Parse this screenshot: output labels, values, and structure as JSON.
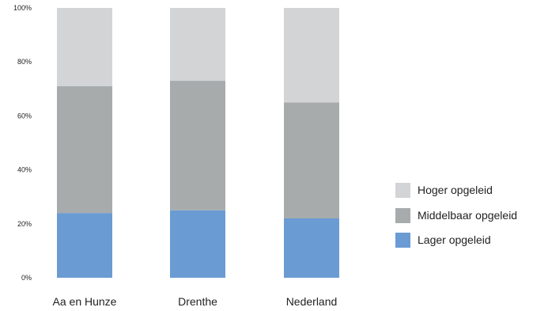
{
  "chart_data": {
    "type": "bar",
    "stacked": true,
    "categories": [
      "Aa en Hunze",
      "Drenthe",
      "Nederland"
    ],
    "series": [
      {
        "name": "Lager opgeleid",
        "values": [
          24,
          25,
          22
        ],
        "color": "#6a9bd3"
      },
      {
        "name": "Middelbaar opgeleid",
        "values": [
          47,
          48,
          43
        ],
        "color": "#a7abac"
      },
      {
        "name": "Hoger opgeleid",
        "values": [
          29,
          27,
          35
        ],
        "color": "#d3d4d5"
      }
    ],
    "legend_order": [
      "Hoger opgeleid",
      "Middelbaar opgeleid",
      "Lager opgeleid"
    ],
    "title": "",
    "xlabel": "",
    "ylabel": "",
    "ylim": [
      0,
      100
    ],
    "yticks": [
      "0%",
      "20%",
      "40%",
      "60%",
      "80%",
      "100%"
    ],
    "ytick_values": [
      0,
      20,
      40,
      60,
      80,
      100
    ],
    "grid": false,
    "legend_position": "right"
  }
}
